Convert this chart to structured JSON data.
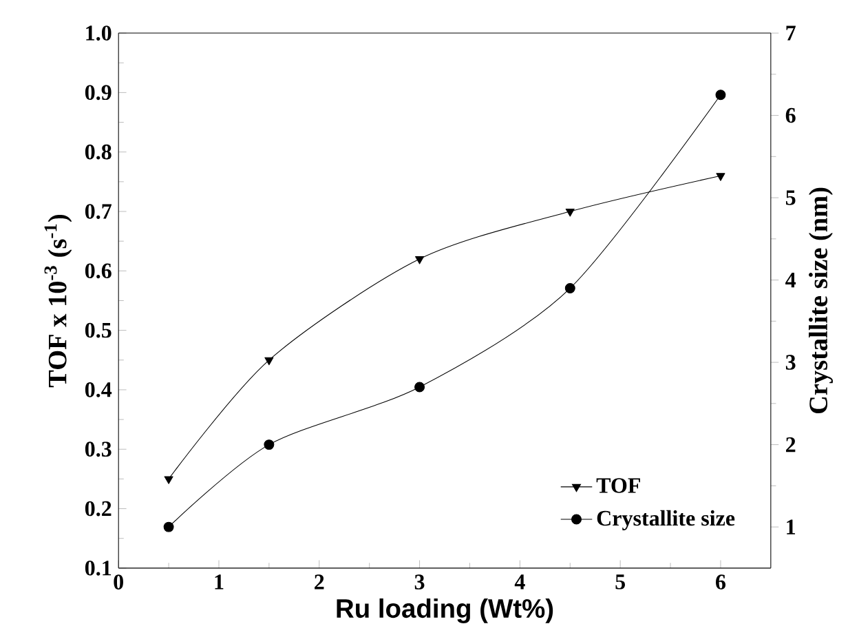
{
  "chart_data": {
    "type": "line",
    "xlabel": "Ru loading (Wt%)",
    "ylabel": "TOF x 10$^{-3}$ (s$^{-1}$)",
    "y2label": "Crystallite size (nm)",
    "x": [
      0.5,
      1.5,
      3,
      4.5,
      6
    ],
    "series": [
      {
        "name": "TOF",
        "color": "#000000",
        "marker": "triangle",
        "values": [
          0.25,
          0.45,
          0.62,
          0.7,
          0.76
        ]
      },
      {
        "name": "Crystallite size",
        "color": "#000000",
        "marker": "circle",
        "axis": "y2",
        "values": [
          1.0,
          2.0,
          2.7,
          3.9,
          6.25
        ]
      }
    ],
    "xlim": [
      0,
      6.5
    ],
    "xticks": [
      0,
      1,
      2,
      3,
      4,
      5,
      6
    ],
    "ylim": [
      0.1,
      1.0
    ],
    "yticks": [
      {
        "value": 0.1,
        "label": "0.1"
      },
      {
        "value": 0.2,
        "label": "0.2"
      },
      {
        "value": 0.3,
        "label": "0.3"
      },
      {
        "value": 0.4,
        "label": "0.4"
      },
      {
        "value": 0.5,
        "label": "0.5"
      },
      {
        "value": 0.6,
        "label": "0.6"
      },
      {
        "value": 0.7,
        "label": "0.7"
      },
      {
        "value": 0.8,
        "label": "0.8"
      },
      {
        "value": 0.9,
        "label": "0.9"
      },
      {
        "value": 1.0,
        "label": "1.0"
      }
    ],
    "y2lim": [
      0.5,
      7
    ],
    "y2ticks": [
      1,
      2,
      3,
      4,
      5,
      6,
      7
    ],
    "legend": "bottom right",
    "grid": false,
    "line_style": "solid"
  }
}
